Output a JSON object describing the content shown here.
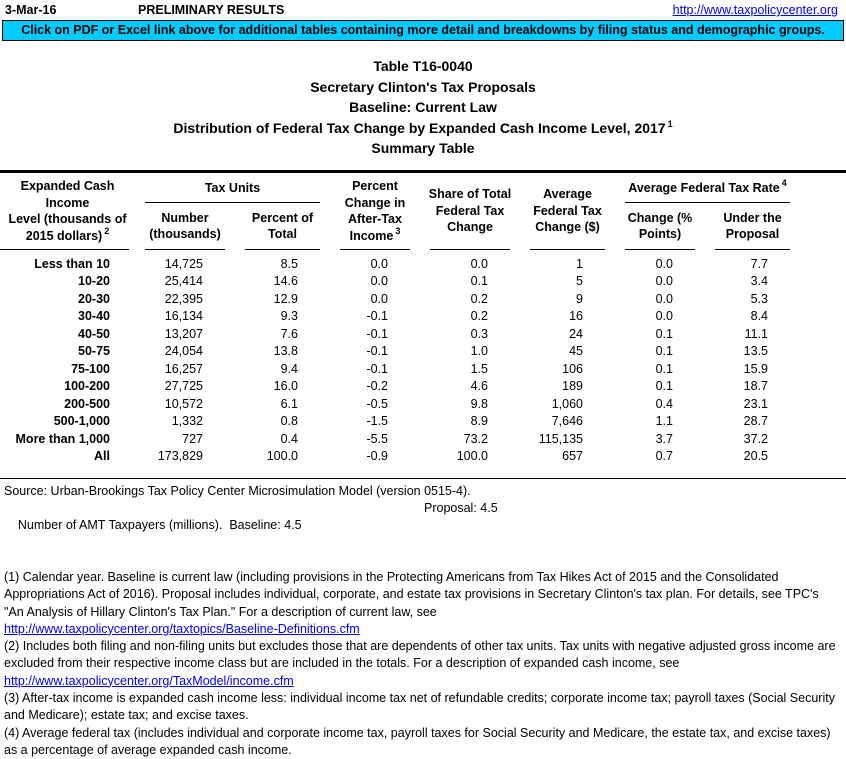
{
  "topbar": {
    "date": "3-Mar-16",
    "preliminary": "PRELIMINARY RESULTS",
    "url": "http://www.taxpolicycenter.org"
  },
  "banner": {
    "text": "Click on PDF or Excel link above for additional tables containing more detail and breakdowns by filing status and demographic groups.",
    "color": "#00CCFF"
  },
  "title": {
    "l1": "Table T16-0040",
    "l2": "Secretary Clinton's Tax Proposals",
    "l3": "Baseline: Current Law",
    "l4": "Distribution of Federal Tax Change by Expanded Cash Income Level, 2017",
    "l4_sup": "1",
    "l5": "Summary Table"
  },
  "table": {
    "group_tax_units": "Tax Units",
    "group_avg_rate": "Average Federal Tax Rate",
    "group_avg_rate_sup": "4",
    "col1": {
      "l1": "Expanded Cash Income",
      "l2": "Level (thousands of",
      "l3": "2015 dollars)",
      "sup": "2"
    },
    "col2": {
      "l1": "Number",
      "l2": "(thousands)"
    },
    "col3": {
      "l1": "Percent of",
      "l2": "Total"
    },
    "col4": {
      "l1": "Percent",
      "l2": "Change in",
      "l3": "After-Tax",
      "l4": "Income",
      "sup": "3"
    },
    "col5": {
      "l1": "Share of Total",
      "l2": "Federal Tax",
      "l3": "Change"
    },
    "col6": {
      "l1": "Average",
      "l2": "Federal Tax",
      "l3": "Change ($)"
    },
    "col7": {
      "l1": "Change (%",
      "l2": "Points)"
    },
    "col8": {
      "l1": "Under the",
      "l2": "Proposal"
    },
    "rows": [
      {
        "label": "Less than 10",
        "values": [
          "14,725",
          "8.5",
          "0.0",
          "0.0",
          "1",
          "0.0",
          "7.7"
        ]
      },
      {
        "label": "10-20",
        "values": [
          "25,414",
          "14.6",
          "0.0",
          "0.1",
          "5",
          "0.0",
          "3.4"
        ]
      },
      {
        "label": "20-30",
        "values": [
          "22,395",
          "12.9",
          "0.0",
          "0.2",
          "9",
          "0.0",
          "5.3"
        ]
      },
      {
        "label": "30-40",
        "values": [
          "16,134",
          "9.3",
          "-0.1",
          "0.2",
          "16",
          "0.0",
          "8.4"
        ]
      },
      {
        "label": "40-50",
        "values": [
          "13,207",
          "7.6",
          "-0.1",
          "0.3",
          "24",
          "0.1",
          "11.1"
        ]
      },
      {
        "label": "50-75",
        "values": [
          "24,054",
          "13.8",
          "-0.1",
          "1.0",
          "45",
          "0.1",
          "13.5"
        ]
      },
      {
        "label": "75-100",
        "values": [
          "16,257",
          "9.4",
          "-0.1",
          "1.5",
          "106",
          "0.1",
          "15.9"
        ]
      },
      {
        "label": "100-200",
        "values": [
          "27,725",
          "16.0",
          "-0.2",
          "4.6",
          "189",
          "0.1",
          "18.7"
        ]
      },
      {
        "label": "200-500",
        "values": [
          "10,572",
          "6.1",
          "-0.5",
          "9.8",
          "1,060",
          "0.4",
          "23.1"
        ]
      },
      {
        "label": "500-1,000",
        "values": [
          "1,332",
          "0.8",
          "-1.5",
          "8.9",
          "7,646",
          "1.1",
          "28.7"
        ]
      },
      {
        "label": "More than 1,000",
        "values": [
          "727",
          "0.4",
          "-5.5",
          "73.2",
          "115,135",
          "3.7",
          "37.2"
        ]
      },
      {
        "label": "All",
        "values": [
          "173,829",
          "100.0",
          "-0.9",
          "100.0",
          "657",
          "0.7",
          "20.5"
        ]
      }
    ]
  },
  "footnotes": {
    "source": "Source: Urban-Brookings Tax Policy Center Microsimulation Model (version 0515-4).",
    "amt_left": "Number of AMT Taxpayers (millions).  Baseline: 4.5",
    "amt_proposal": "Proposal: 4.5",
    "note1": "(1) Calendar year. Baseline is current law (including provisions in the Protecting Americans from Tax Hikes Act of 2015 and the Consolidated Appropriations Act of 2016). Proposal includes individual, corporate, and estate tax provisions in Secretary Clinton's tax plan. For details, see TPC's \"An Analysis of Hillary Clinton's Tax Plan.\" For a description of current law, see",
    "link1": "http://www.taxpolicycenter.org/taxtopics/Baseline-Definitions.cfm",
    "note2": "(2) Includes both filing and non-filing units but excludes those that are dependents of other tax units. Tax units with negative adjusted gross income are excluded from their respective income class but are included in the totals. For a description of expanded cash income, see",
    "link2": "http://www.taxpolicycenter.org/TaxModel/income.cfm",
    "note3": "(3) After-tax income is expanded cash income less: individual income tax net of refundable credits; corporate income tax; payroll taxes (Social Security and Medicare); estate tax; and excise taxes.",
    "note4": "(4) Average federal tax (includes individual and corporate income tax, payroll taxes for Social Security and Medicare, the estate tax, and excise taxes) as a percentage of average expanded cash income."
  }
}
